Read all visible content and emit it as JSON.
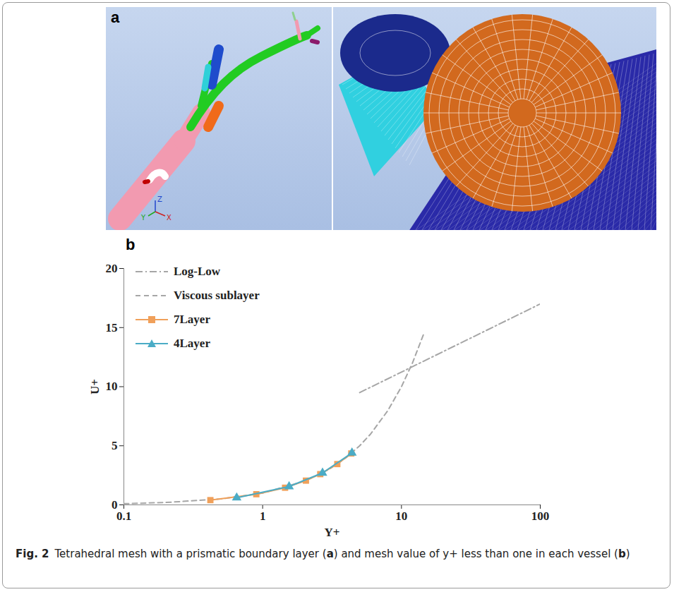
{
  "panel_a": {
    "label": "a",
    "axis_labels": [
      "Z",
      "Y",
      "X"
    ]
  },
  "panel_b_label": "b",
  "chart_data": {
    "type": "line",
    "x_label": "Y+",
    "y_label": "U+",
    "log": "x",
    "grid": false,
    "legend": "upper left",
    "xlim": [
      0.1,
      100
    ],
    "xticks": [
      0.1,
      1,
      10,
      100
    ],
    "ylim": [
      0,
      20
    ],
    "yticks": [
      0,
      5,
      10,
      15,
      20
    ],
    "series": [
      {
        "name": "Log-Low",
        "color": "#a6a6a6",
        "line_style": "dashdot",
        "marker": "none",
        "x": [
          5,
          100
        ],
        "values": [
          9.5,
          17
        ]
      },
      {
        "name": "Viscous sublayer",
        "color": "#a6a6a6",
        "line_style": "dashed",
        "marker": "none",
        "x": [
          0.1,
          0.2,
          0.5,
          1,
          2,
          3,
          4,
          5,
          6,
          8,
          10,
          12,
          14.5
        ],
        "values": [
          0.1,
          0.2,
          0.5,
          1,
          2,
          3,
          4,
          5,
          6,
          8,
          10,
          12,
          14.5
        ]
      },
      {
        "name": "7Layer",
        "color": "#f0a05a",
        "line_style": "solid",
        "marker": "square",
        "x": [
          0.42,
          0.9,
          1.45,
          2.05,
          2.6,
          3.45,
          4.35
        ],
        "values": [
          0.4,
          0.9,
          1.45,
          2.05,
          2.6,
          3.45,
          4.35
        ]
      },
      {
        "name": "4Layer",
        "color": "#4bacc6",
        "line_style": "solid",
        "marker": "triangle",
        "x": [
          0.65,
          1.55,
          2.7,
          4.4
        ],
        "values": [
          0.6,
          1.55,
          2.7,
          4.4
        ]
      }
    ]
  },
  "caption": {
    "label": "Fig. 2",
    "parts": [
      {
        "text": "Tetrahedral mesh with a prismatic boundary layer ("
      },
      {
        "text": "a",
        "bold": true
      },
      {
        "text": ") and mesh value of y+ less than one in each vessel ("
      },
      {
        "text": "b",
        "bold": true
      },
      {
        "text": ")"
      }
    ]
  }
}
